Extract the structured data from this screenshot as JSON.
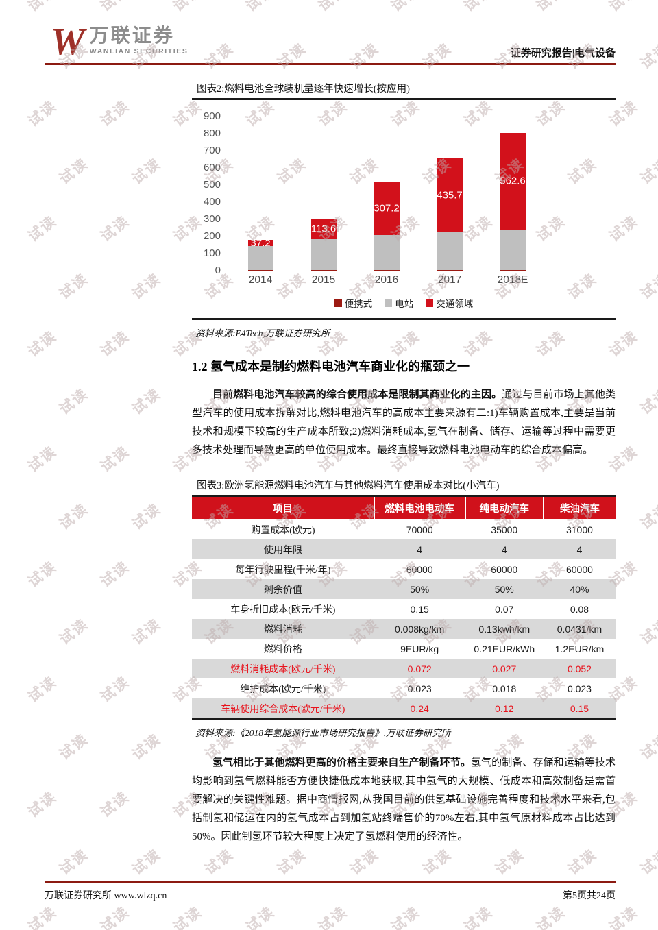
{
  "page": {
    "watermark_text": "试读",
    "footer": {
      "left": "万联证券研究所 www.wlzq.cn",
      "right": "第5页共24页"
    }
  },
  "header": {
    "logo_w": "W",
    "logo_cn": "万联证券",
    "logo_en": "WANLIAN SECURITIES",
    "right_text": "证券研究报告|电气设备"
  },
  "figure2": {
    "title": "图表2:燃料电池全球装机量逐年快速增长(按应用)",
    "source": "资料来源:E4Tech,万联证券研究所"
  },
  "chart_data": {
    "type": "bar",
    "stacked": true,
    "title": "燃料电池全球装机量逐年快速增长(按应用)",
    "categories": [
      "2014",
      "2015",
      "2016",
      "2017",
      "2018E"
    ],
    "series": [
      {
        "name": "便携式",
        "color": "#9C1A12",
        "values": [
          3,
          4,
          4,
          5,
          5
        ]
      },
      {
        "name": "电站",
        "color": "#BFBFBF",
        "values": [
          140,
          182,
          205,
          219,
          237
        ]
      },
      {
        "name": "交通领域",
        "color": "#D2111B",
        "values": [
          37.2,
          113.6,
          307.2,
          435.7,
          562.6
        ],
        "labels": [
          "37.2",
          "113.6",
          "307.2",
          "435.7",
          "562.6"
        ]
      }
    ],
    "ylim": [
      0,
      900
    ],
    "ytick_step": 100,
    "xlabel": "",
    "ylabel": "",
    "grid": false,
    "legend_position": "bottom"
  },
  "section": {
    "heading": "1.2 氢气成本是制约燃料电池汽车商业化的瓶颈之一"
  },
  "para1": {
    "bold": "目前燃料电池汽车较高的综合使用成本是限制其商业化的主因。",
    "rest": "通过与目前市场上其他类型汽车的使用成本拆解对比,燃料电池汽车的高成本主要来源有二:1)车辆购置成本,主要是当前技术和规模下较高的生产成本所致;2)燃料消耗成本,氢气在制备、储存、运输等过程中需要更多技术处理而导致更高的单位使用成本。最终直接导致燃料电池电动车的综合成本偏高。"
  },
  "figure3": {
    "title": "图表3:欧洲氢能源燃料电池汽车与其他燃料汽车使用成本对比(小汽车)",
    "source": "资料来源:《2018年氢能源行业市场研究报告》,万联证券研究所",
    "columns": [
      "项目",
      "燃料电池电动车",
      "纯电动汽车",
      "柴油汽车"
    ],
    "rows": [
      {
        "label": "购置成本(欧元)",
        "values": [
          "70000",
          "35000",
          "31000"
        ],
        "highlight": false
      },
      {
        "label": "使用年限",
        "values": [
          "4",
          "4",
          "4"
        ],
        "highlight": false
      },
      {
        "label": "每年行驶里程(千米/年)",
        "values": [
          "60000",
          "60000",
          "60000"
        ],
        "highlight": false
      },
      {
        "label": "剩余价值",
        "values": [
          "50%",
          "50%",
          "40%"
        ],
        "highlight": false
      },
      {
        "label": "车身折旧成本(欧元/千米)",
        "values": [
          "0.15",
          "0.07",
          "0.08"
        ],
        "highlight": false
      },
      {
        "label": "燃料消耗",
        "values": [
          "0.008kg/km",
          "0.13kwh/km",
          "0.0431/km"
        ],
        "highlight": false
      },
      {
        "label": "燃料价格",
        "values": [
          "9EUR/kg",
          "0.21EUR/kWh",
          "1.2EUR/km"
        ],
        "highlight": false
      },
      {
        "label": "燃料消耗成本(欧元/千米)",
        "values": [
          "0.072",
          "0.027",
          "0.052"
        ],
        "highlight": true
      },
      {
        "label": "维护成本(欧元/千米)",
        "values": [
          "0.023",
          "0.018",
          "0.023"
        ],
        "highlight": false
      },
      {
        "label": "车辆使用综合成本(欧元/千米)",
        "values": [
          "0.24",
          "0.12",
          "0.15"
        ],
        "highlight": true
      }
    ]
  },
  "para2": {
    "bold": "氢气相比于其他燃料更高的价格主要来自生产制备环节。",
    "rest": "氢气的制备、存储和运输等技术均影响到氢气燃料能否方便快捷低成本地获取,其中氢气的大规模、低成本和高效制备是需首要解决的关键性难题。据中商情报网,从我国目前的供氢基础设施完善程度和技术水平来看,包括制氢和储运在内的氢气成本占到加氢站终端售价的70%左右,其中氢气原材料成本占比达到50%。因此制氢环节较大程度上决定了氢燃料使用的经济性。"
  },
  "colors": {
    "accent_red": "#D0111B",
    "dark_red_line": "#8C1A11",
    "bar_gray": "#BFBFBF",
    "row_gray": "#D9D9D9",
    "highlight_red": "#E8131D",
    "logo_red": "#9E3028",
    "logo_gray": "#8C8C8C",
    "watermark": "#BEACAC"
  }
}
